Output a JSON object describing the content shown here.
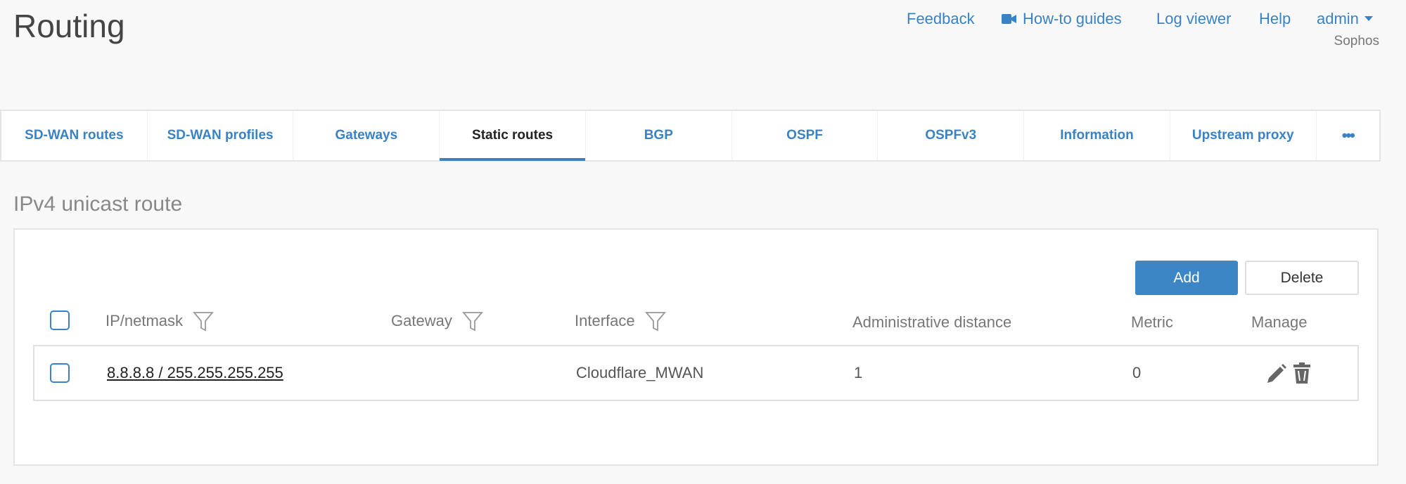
{
  "header": {
    "title": "Routing",
    "links": [
      "Feedback",
      "How-to guides",
      "Log viewer",
      "Help",
      "admin"
    ],
    "org": "Sophos"
  },
  "tabs": [
    {
      "label": "SD-WAN routes"
    },
    {
      "label": "SD-WAN profiles"
    },
    {
      "label": "Gateways"
    },
    {
      "label": "Static routes",
      "active": true
    },
    {
      "label": "BGP"
    },
    {
      "label": "OSPF"
    },
    {
      "label": "OSPFv3"
    },
    {
      "label": "Information"
    },
    {
      "label": "Upstream proxy"
    },
    {
      "label": "•••"
    }
  ],
  "section": {
    "title": "IPv4 unicast route",
    "add_label": "Add",
    "delete_label": "Delete"
  },
  "table": {
    "columns": [
      "IP/netmask",
      "Gateway",
      "Interface",
      "Administrative distance",
      "Metric",
      "Manage"
    ],
    "rows": [
      {
        "ip": "8.8.8.8 / 255.255.255.255",
        "gateway": "",
        "interface": "Cloudflare_MWAN",
        "distance": "1",
        "metric": "0"
      }
    ]
  },
  "colors": {
    "accent": "#3a82c4"
  }
}
